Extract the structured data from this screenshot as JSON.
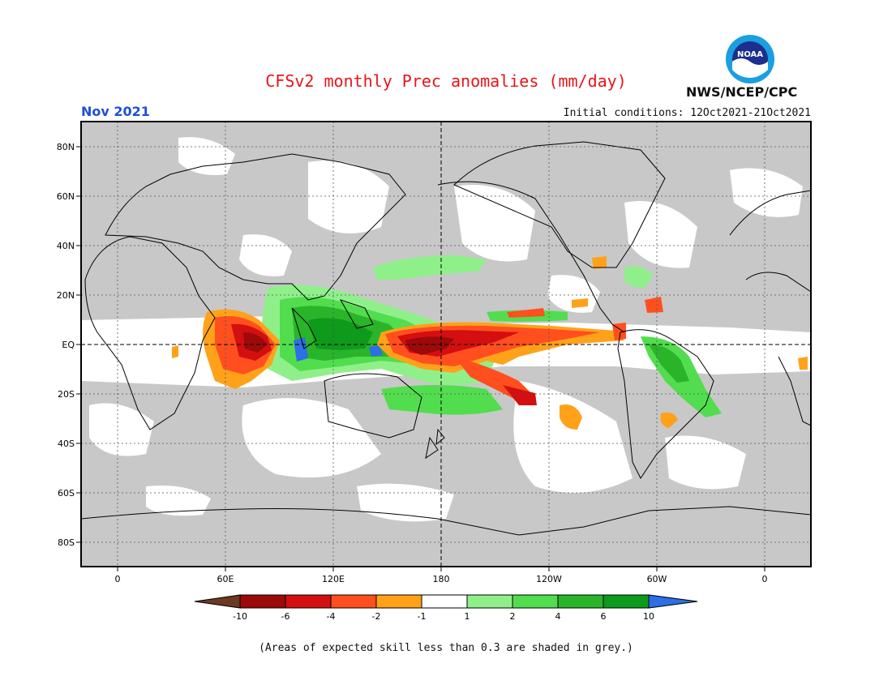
{
  "header": {
    "title": "CFSv2 monthly Prec anomalies (mm/day)",
    "month": "Nov 2021",
    "initial_conditions": "Initial conditions: 12Oct2021-21Oct2021",
    "agency": "NWS/NCEP/CPC",
    "logo_text": "NOAA"
  },
  "map": {
    "lat_labels": [
      "80N",
      "60N",
      "40N",
      "20N",
      "EQ",
      "20S",
      "40S",
      "60S",
      "80S"
    ],
    "lon_labels": [
      "0",
      "60E",
      "120E",
      "180",
      "120W",
      "60W",
      "0"
    ]
  },
  "legend": {
    "labels": [
      "-10",
      "-6",
      "-4",
      "-2",
      "-1",
      "1",
      "2",
      "4",
      "6",
      "10"
    ],
    "colors": {
      "lt_minus10": "#6b3a21",
      "minus10_minus6": "#9c0a0a",
      "minus6_minus4": "#d40f0f",
      "minus4_minus2": "#ff4f1f",
      "minus2_minus1": "#ffa21a",
      "minus1_1": "#ffffff",
      "one_two": "#8ff08a",
      "two_four": "#52dd4f",
      "four_six": "#2ab42a",
      "six_ten": "#0e9a1b",
      "gt10": "#2c6fe6"
    }
  },
  "caption": "(Areas of expected skill less than 0.3 are shaded in grey.)",
  "colors": {
    "grey_mask": "#c8c8c8",
    "title_red": "#e8141a",
    "month_blue": "#1f4fd8"
  }
}
